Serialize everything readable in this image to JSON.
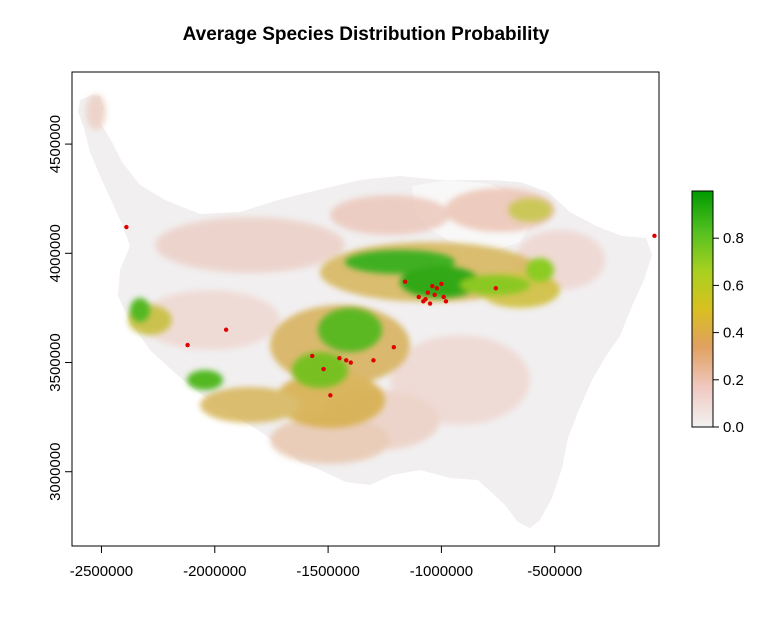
{
  "chart_data": {
    "type": "heatmap",
    "title": "Average Species Distribution Probability",
    "xlabel": "",
    "ylabel": "",
    "xlim": [
      -2630000,
      -40000
    ],
    "ylim": [
      2660000,
      4830000
    ],
    "xticks": [
      -2500000,
      -2000000,
      -1500000,
      -1000000,
      -500000
    ],
    "xtick_labels": [
      "-2500000",
      "-2000000",
      "-1500000",
      "-1000000",
      "-500000"
    ],
    "yticks": [
      3000000,
      3500000,
      4000000,
      4500000
    ],
    "ytick_labels": [
      "3000000",
      "3500000",
      "4000000",
      "4500000"
    ],
    "legend": {
      "position": "right",
      "range": [
        0,
        1
      ],
      "ticks": [
        0.0,
        0.2,
        0.4,
        0.6,
        0.8
      ],
      "tick_labels": [
        "0.0",
        "0.2",
        "0.4",
        "0.6",
        "0.8"
      ],
      "colors": [
        "#f2f2f2",
        "#f0c8c0",
        "#e0a060",
        "#d8c020",
        "#a8d020",
        "#52c020",
        "#009a00"
      ]
    },
    "occurrence_points_color": "#e00000",
    "occurrence_points": [
      [
        -2390000,
        4120000
      ],
      [
        -2120000,
        3580000
      ],
      [
        -1950000,
        3650000
      ],
      [
        -1160000,
        3870000
      ],
      [
        -1100000,
        3800000
      ],
      [
        -1080000,
        3780000
      ],
      [
        -1060000,
        3820000
      ],
      [
        -1040000,
        3850000
      ],
      [
        -1020000,
        3840000
      ],
      [
        -1000000,
        3860000
      ],
      [
        -990000,
        3800000
      ],
      [
        -980000,
        3780000
      ],
      [
        -1070000,
        3790000
      ],
      [
        -1050000,
        3770000
      ],
      [
        -1030000,
        3810000
      ],
      [
        -760000,
        3840000
      ],
      [
        -1570000,
        3530000
      ],
      [
        -1520000,
        3470000
      ],
      [
        -1450000,
        3520000
      ],
      [
        -1420000,
        3510000
      ],
      [
        -1400000,
        3500000
      ],
      [
        -1300000,
        3510000
      ],
      [
        -1210000,
        3570000
      ],
      [
        -1490000,
        3350000
      ],
      [
        -60000,
        4080000
      ]
    ]
  }
}
